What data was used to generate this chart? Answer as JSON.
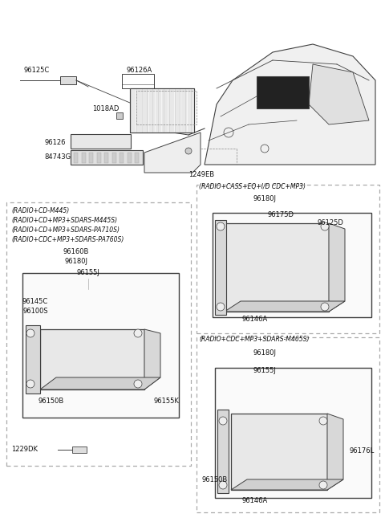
{
  "bg_color": "#ffffff",
  "line_color": "#404040",
  "dash_color": "#999999",
  "text_color": "#111111",
  "figsize": [
    4.8,
    6.55
  ],
  "dpi": 100,
  "box1_title_lines": [
    "(RADIO+CD-M445)",
    "(RADIO+CD+MP3+SDARS-M445S)",
    "(RADIO+CD+MP3+SDARS-PA710S)",
    "(RADIO+CDC+MP3+SDARS-PA760S)"
  ],
  "box2_title": "(RADIO+CASS+EQ+I/D CDC+MP3)",
  "box3_title": "(RADIO+CDC+MP3+SDARS-M465S)"
}
